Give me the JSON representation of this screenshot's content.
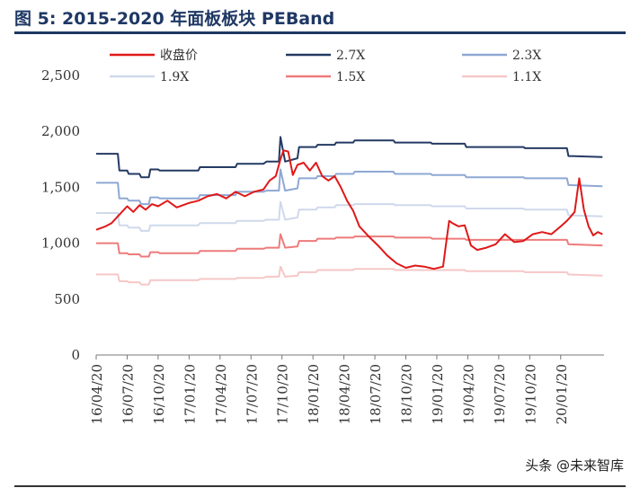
{
  "header": {
    "title": "图 5:  2015-2020 年面板板块 PEBand"
  },
  "watermark": "头条 @未来智库",
  "colors": {
    "close": "#e01818",
    "x27": "#243a63",
    "x23": "#8ea8d4",
    "x19": "#cfd9ec",
    "x15": "#ee7b7b",
    "x11": "#f6c7c7"
  },
  "chart_data": {
    "type": "line",
    "title": "2015-2020 年面板板块 PEBand",
    "xlabel": "",
    "ylabel": "",
    "ylim": [
      0,
      2500
    ],
    "yticks": [
      "0",
      "500",
      "1,000",
      "1,500",
      "2,000",
      "2,500"
    ],
    "ytick_values": [
      0,
      500,
      1000,
      1500,
      2000,
      2500
    ],
    "xticks": [
      "16/04/20",
      "16/07/20",
      "16/10/20",
      "17/01/20",
      "17/04/20",
      "17/07/20",
      "17/10/20",
      "18/01/20",
      "18/04/20",
      "18/07/20",
      "18/10/20",
      "19/01/20",
      "19/04/20",
      "19/07/20",
      "19/10/20",
      "20/01/20"
    ],
    "xlim": [
      0,
      16.4
    ],
    "legend": [
      "收盘价",
      "2.7X",
      "2.3X",
      "1.9X",
      "1.5X",
      "1.1X"
    ],
    "series": [
      {
        "name": "收盘价",
        "color_key": "close",
        "stroke": 2,
        "x": [
          0,
          0.3,
          0.5,
          0.7,
          1.0,
          1.2,
          1.4,
          1.6,
          1.8,
          2.0,
          2.3,
          2.6,
          3.0,
          3.3,
          3.6,
          3.9,
          4.2,
          4.5,
          4.8,
          5.1,
          5.4,
          5.6,
          5.8,
          5.95,
          6.05,
          6.2,
          6.35,
          6.5,
          6.7,
          6.9,
          7.1,
          7.3,
          7.5,
          7.7,
          7.9,
          8.1,
          8.3,
          8.5,
          8.8,
          9.1,
          9.4,
          9.7,
          10.0,
          10.3,
          10.6,
          10.9,
          11.2,
          11.3,
          11.4,
          11.5,
          11.7,
          11.9,
          12.1,
          12.3,
          12.6,
          12.9,
          13.2,
          13.5,
          13.8,
          14.1,
          14.4,
          14.7,
          15.0,
          15.2,
          15.3,
          15.45,
          15.6,
          15.75,
          15.9,
          16.05,
          16.2,
          16.35
        ],
        "values": [
          1120,
          1150,
          1180,
          1240,
          1330,
          1280,
          1340,
          1300,
          1350,
          1330,
          1380,
          1320,
          1360,
          1380,
          1420,
          1440,
          1400,
          1460,
          1420,
          1460,
          1480,
          1560,
          1600,
          1750,
          1830,
          1820,
          1610,
          1700,
          1720,
          1650,
          1720,
          1600,
          1560,
          1600,
          1500,
          1380,
          1290,
          1150,
          1060,
          980,
          890,
          820,
          780,
          800,
          790,
          770,
          790,
          1000,
          1200,
          1180,
          1150,
          1160,
          980,
          940,
          960,
          990,
          1080,
          1010,
          1020,
          1080,
          1100,
          1080,
          1150,
          1200,
          1230,
          1280,
          1580,
          1300,
          1150,
          1070,
          1100,
          1080
        ]
      },
      {
        "name": "2.7X",
        "color_key": "x27",
        "stroke": 2,
        "x": [
          0,
          0.7,
          0.75,
          1.0,
          1.05,
          1.4,
          1.45,
          1.7,
          1.75,
          2.0,
          2.05,
          3.3,
          3.35,
          4.5,
          4.55,
          5.4,
          5.5,
          5.9,
          5.95,
          6.1,
          6.5,
          6.55,
          7.1,
          7.15,
          7.7,
          7.75,
          8.3,
          8.35,
          9.6,
          9.65,
          10.8,
          10.85,
          11.9,
          11.95,
          13.8,
          13.85,
          15.2,
          15.25,
          16.35
        ],
        "values": [
          1800,
          1800,
          1650,
          1650,
          1620,
          1620,
          1590,
          1590,
          1660,
          1660,
          1650,
          1650,
          1680,
          1680,
          1710,
          1710,
          1730,
          1730,
          1950,
          1730,
          1760,
          1860,
          1860,
          1880,
          1880,
          1900,
          1900,
          1920,
          1920,
          1900,
          1900,
          1890,
          1890,
          1860,
          1860,
          1850,
          1850,
          1780,
          1770
        ]
      },
      {
        "name": "2.3X",
        "color_key": "x23",
        "stroke": 2,
        "x": [
          0,
          0.7,
          0.75,
          1.0,
          1.05,
          1.4,
          1.45,
          1.7,
          1.75,
          2.0,
          2.05,
          3.3,
          3.35,
          4.5,
          4.55,
          5.4,
          5.5,
          5.9,
          5.95,
          6.1,
          6.5,
          6.55,
          7.1,
          7.15,
          7.7,
          7.75,
          8.3,
          8.35,
          9.6,
          9.65,
          10.8,
          10.85,
          11.9,
          11.95,
          13.8,
          13.85,
          15.2,
          15.25,
          16.35
        ],
        "values": [
          1540,
          1540,
          1400,
          1400,
          1380,
          1380,
          1350,
          1350,
          1410,
          1410,
          1400,
          1400,
          1430,
          1430,
          1460,
          1460,
          1470,
          1470,
          1660,
          1470,
          1490,
          1580,
          1580,
          1600,
          1600,
          1620,
          1620,
          1640,
          1640,
          1620,
          1620,
          1610,
          1610,
          1590,
          1590,
          1580,
          1580,
          1520,
          1510
        ]
      },
      {
        "name": "1.9X",
        "color_key": "x19",
        "stroke": 2,
        "x": [
          0,
          0.7,
          0.75,
          1.0,
          1.05,
          1.4,
          1.45,
          1.7,
          1.75,
          2.0,
          2.05,
          3.3,
          3.35,
          4.5,
          4.55,
          5.4,
          5.5,
          5.9,
          5.95,
          6.1,
          6.5,
          6.55,
          7.1,
          7.15,
          7.7,
          7.75,
          8.3,
          8.35,
          9.6,
          9.65,
          10.8,
          10.85,
          11.9,
          11.95,
          13.8,
          13.85,
          15.2,
          15.25,
          16.35
        ],
        "values": [
          1270,
          1270,
          1160,
          1160,
          1140,
          1140,
          1110,
          1110,
          1160,
          1160,
          1160,
          1160,
          1180,
          1180,
          1200,
          1200,
          1210,
          1210,
          1370,
          1210,
          1230,
          1300,
          1300,
          1320,
          1320,
          1340,
          1340,
          1350,
          1350,
          1340,
          1340,
          1330,
          1330,
          1310,
          1310,
          1300,
          1300,
          1250,
          1240
        ]
      },
      {
        "name": "1.5X",
        "color_key": "x15",
        "stroke": 2,
        "x": [
          0,
          0.7,
          0.75,
          1.0,
          1.05,
          1.4,
          1.45,
          1.7,
          1.75,
          2.0,
          2.05,
          3.3,
          3.35,
          4.5,
          4.55,
          5.4,
          5.5,
          5.9,
          5.95,
          6.1,
          6.5,
          6.55,
          7.1,
          7.15,
          7.7,
          7.75,
          8.3,
          8.35,
          9.6,
          9.65,
          10.8,
          10.85,
          11.9,
          11.95,
          13.8,
          13.85,
          15.2,
          15.25,
          16.35
        ],
        "values": [
          1000,
          1000,
          910,
          910,
          900,
          900,
          880,
          880,
          920,
          920,
          910,
          910,
          930,
          930,
          950,
          950,
          960,
          960,
          1080,
          960,
          970,
          1020,
          1020,
          1040,
          1040,
          1050,
          1050,
          1060,
          1060,
          1050,
          1050,
          1040,
          1040,
          1030,
          1030,
          1030,
          1030,
          990,
          980
        ]
      },
      {
        "name": "1.1X",
        "color_key": "x11",
        "stroke": 2,
        "x": [
          0,
          0.7,
          0.75,
          1.0,
          1.05,
          1.4,
          1.45,
          1.7,
          1.75,
          2.0,
          2.05,
          3.3,
          3.35,
          4.5,
          4.55,
          5.4,
          5.5,
          5.9,
          5.95,
          6.1,
          6.5,
          6.55,
          7.1,
          7.15,
          7.7,
          7.75,
          8.3,
          8.35,
          9.6,
          9.65,
          10.8,
          10.85,
          11.9,
          11.95,
          13.8,
          13.85,
          15.2,
          15.25,
          16.35
        ],
        "values": [
          720,
          720,
          660,
          660,
          650,
          650,
          630,
          630,
          670,
          670,
          670,
          670,
          680,
          680,
          690,
          690,
          700,
          700,
          790,
          700,
          710,
          740,
          740,
          760,
          760,
          760,
          760,
          770,
          770,
          760,
          760,
          760,
          760,
          750,
          750,
          740,
          740,
          720,
          710
        ]
      }
    ]
  }
}
